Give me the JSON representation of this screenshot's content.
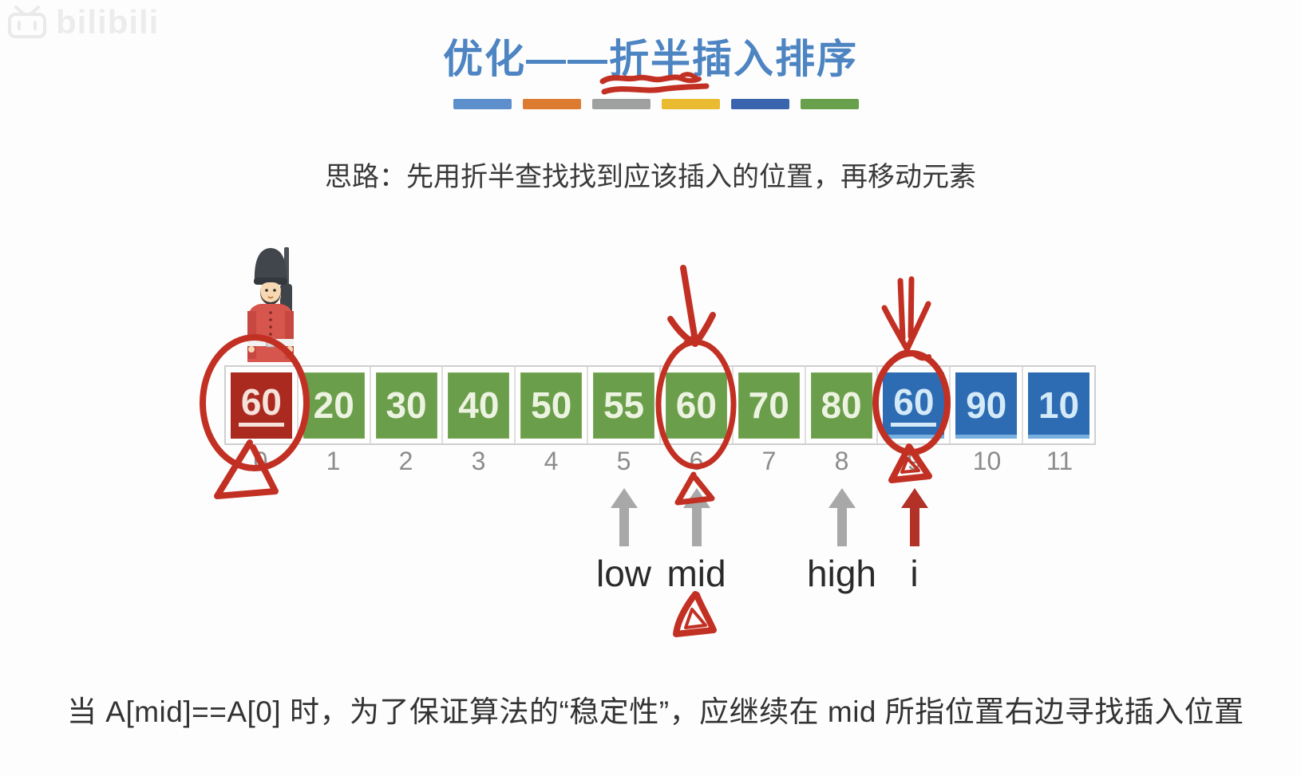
{
  "watermark": {
    "text": "bilibili"
  },
  "header": {
    "title": "优化——折半插入排序"
  },
  "divider_bars": [
    "#5c8fcb",
    "#dd7c31",
    "#9fa0a0",
    "#eaba31",
    "#3b64af",
    "#69a04b"
  ],
  "subtitle": "思路：先用折半查找找到应该插入的位置，再移动元素",
  "array": {
    "cells": [
      {
        "value": "60",
        "index": "0",
        "color": "red",
        "underlined": true
      },
      {
        "value": "20",
        "index": "1",
        "color": "green"
      },
      {
        "value": "30",
        "index": "2",
        "color": "green"
      },
      {
        "value": "40",
        "index": "3",
        "color": "green"
      },
      {
        "value": "50",
        "index": "4",
        "color": "green"
      },
      {
        "value": "55",
        "index": "5",
        "color": "green"
      },
      {
        "value": "60",
        "index": "6",
        "color": "green"
      },
      {
        "value": "70",
        "index": "7",
        "color": "green"
      },
      {
        "value": "80",
        "index": "8",
        "color": "green"
      },
      {
        "value": "60",
        "index": "9",
        "color": "blue",
        "underlined": true
      },
      {
        "value": "90",
        "index": "10",
        "color": "blue"
      },
      {
        "value": "10",
        "index": "11",
        "color": "blue"
      }
    ]
  },
  "pointers": [
    {
      "label": "low",
      "cell_index": 5,
      "style": "gray"
    },
    {
      "label": "mid",
      "cell_index": 6,
      "style": "gray"
    },
    {
      "label": "high",
      "cell_index": 8,
      "style": "gray"
    },
    {
      "label": "i",
      "cell_index": 9,
      "style": "darkred"
    }
  ],
  "footnote": "当 A[mid]==A[0] 时，为了保证算法的“稳定性”，应继续在 mid 所指位置右边寻找插入位置",
  "colors": {
    "title_blue": "#4d84c2",
    "box_green": "#6b9e4b",
    "box_red": "#ab2a20",
    "box_blue": "#2d6cb3",
    "annotation_red": "#c23023",
    "pointer_gray": "#a8a8a8",
    "pointer_darkred": "#b23228"
  }
}
